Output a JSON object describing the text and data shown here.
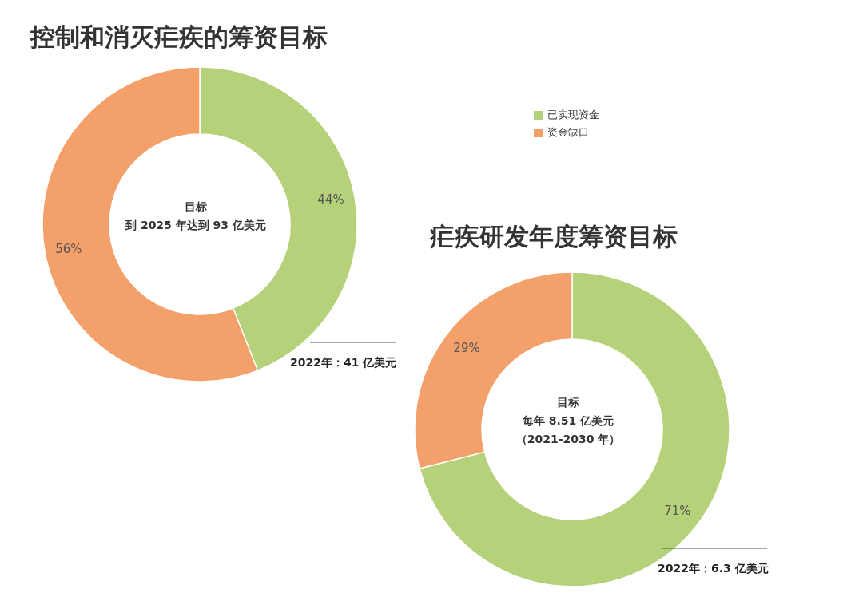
{
  "chart_data": [
    {
      "type": "donut",
      "title": "控制和消灭疟疾的筹资目标",
      "categories": [
        "已实现资金",
        "资金缺口"
      ],
      "values": [
        44,
        56
      ],
      "colors": [
        "#b5d17a",
        "#f4a06b"
      ],
      "value_labels": [
        "44%",
        "56%"
      ],
      "legend": "right",
      "annotations": [
        "目标",
        "到 2025 年达到 93 亿美元",
        "2022年：41 亿美元"
      ]
    },
    {
      "type": "donut",
      "title": "疟疾研发年度筹资目标",
      "categories": [
        null,
        null
      ],
      "values": [
        71,
        29
      ],
      "colors": [
        "#b5d17a",
        "#f4a06b"
      ],
      "value_labels": [
        "71%",
        "29%"
      ],
      "annotations": [
        "目标",
        "每年 8.51 亿美元",
        "（2021-2030 年）",
        "2022年：6.3 亿美元"
      ]
    }
  ]
}
